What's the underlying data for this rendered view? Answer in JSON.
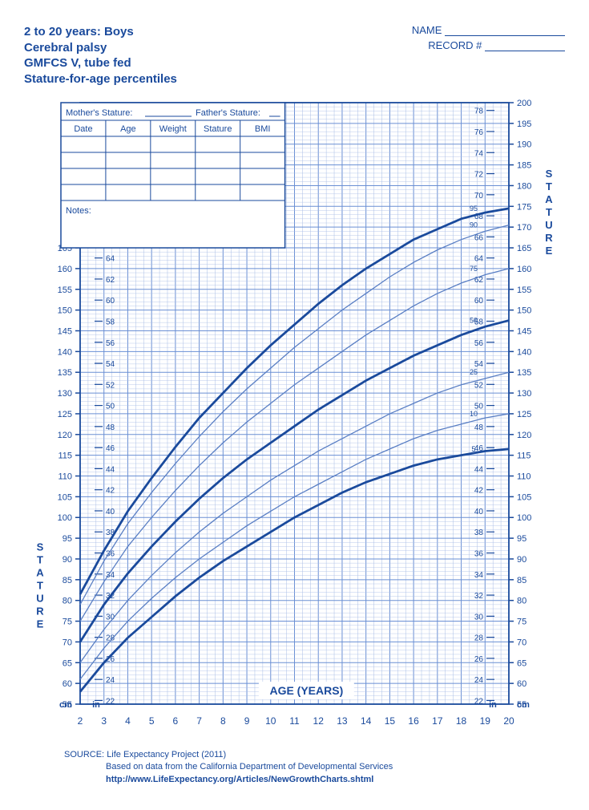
{
  "header": {
    "title1": "2 to 20 years: Boys",
    "title2": "Cerebral palsy",
    "title3": "GMFCS V, tube fed",
    "title4": "Stature-for-age percentiles",
    "name_label": "NAME",
    "record_label": "RECORD #"
  },
  "data_box": {
    "mothers": "Mother's Stature:",
    "fathers": "Father's Stature:",
    "cols": [
      "Date",
      "Age",
      "Weight",
      "Stature",
      "BMI"
    ],
    "notes_label": "Notes:"
  },
  "chart": {
    "x_label": "AGE (YEARS)",
    "y_label": "STATURE",
    "x": {
      "min": 2,
      "max": 20,
      "major": 1
    },
    "y_cm": {
      "min": 55,
      "max": 200,
      "major": 5
    },
    "y_in": {
      "min": 22,
      "max": 78,
      "major": 2
    },
    "left_cm_label_max": 165,
    "left_in_label_max": 66,
    "right_cm_label_min": 55,
    "cm_label": "cm",
    "in_label": "in",
    "grid_color": "#6a8fd4",
    "grid_minor_color": "#a8bde6",
    "curve_color_thick": "#1a4a9c",
    "curve_color_thin": "#5a7fc4",
    "percentiles": [
      {
        "label": "5",
        "thick": true,
        "points": [
          [
            2,
            58
          ],
          [
            3,
            65
          ],
          [
            4,
            71
          ],
          [
            5,
            76
          ],
          [
            6,
            81
          ],
          [
            7,
            85.5
          ],
          [
            8,
            89.5
          ],
          [
            9,
            93
          ],
          [
            10,
            96.5
          ],
          [
            11,
            100
          ],
          [
            12,
            103
          ],
          [
            13,
            106
          ],
          [
            14,
            108.5
          ],
          [
            15,
            110.5
          ],
          [
            16,
            112.5
          ],
          [
            17,
            114
          ],
          [
            18,
            115
          ],
          [
            19,
            116
          ],
          [
            20,
            116.5
          ]
        ]
      },
      {
        "label": "10",
        "thick": false,
        "points": [
          [
            2,
            61
          ],
          [
            3,
            68.5
          ],
          [
            4,
            75
          ],
          [
            5,
            80.5
          ],
          [
            6,
            85.5
          ],
          [
            7,
            90
          ],
          [
            8,
            94
          ],
          [
            9,
            98
          ],
          [
            10,
            101.5
          ],
          [
            11,
            105
          ],
          [
            12,
            108
          ],
          [
            13,
            111
          ],
          [
            14,
            114
          ],
          [
            15,
            116.5
          ],
          [
            16,
            119
          ],
          [
            17,
            121
          ],
          [
            18,
            122.5
          ],
          [
            19,
            124
          ],
          [
            20,
            125
          ]
        ]
      },
      {
        "label": "25",
        "thick": false,
        "points": [
          [
            2,
            65
          ],
          [
            3,
            73
          ],
          [
            4,
            80
          ],
          [
            5,
            86
          ],
          [
            6,
            91.5
          ],
          [
            7,
            96.5
          ],
          [
            8,
            101
          ],
          [
            9,
            105
          ],
          [
            10,
            109
          ],
          [
            11,
            112.5
          ],
          [
            12,
            116
          ],
          [
            13,
            119
          ],
          [
            14,
            122
          ],
          [
            15,
            125
          ],
          [
            16,
            127.5
          ],
          [
            17,
            130
          ],
          [
            18,
            132
          ],
          [
            19,
            133.5
          ],
          [
            20,
            135
          ]
        ]
      },
      {
        "label": "50",
        "thick": true,
        "points": [
          [
            2,
            70
          ],
          [
            3,
            79
          ],
          [
            4,
            86.5
          ],
          [
            5,
            93
          ],
          [
            6,
            99
          ],
          [
            7,
            104.5
          ],
          [
            8,
            109.5
          ],
          [
            9,
            114
          ],
          [
            10,
            118
          ],
          [
            11,
            122
          ],
          [
            12,
            126
          ],
          [
            13,
            129.5
          ],
          [
            14,
            133
          ],
          [
            15,
            136
          ],
          [
            16,
            139
          ],
          [
            17,
            141.5
          ],
          [
            18,
            144
          ],
          [
            19,
            146
          ],
          [
            20,
            147.5
          ]
        ]
      },
      {
        "label": "75",
        "thick": false,
        "points": [
          [
            2,
            75
          ],
          [
            3,
            84.5
          ],
          [
            4,
            93
          ],
          [
            5,
            100
          ],
          [
            6,
            106.5
          ],
          [
            7,
            112.5
          ],
          [
            8,
            118
          ],
          [
            9,
            123
          ],
          [
            10,
            127.5
          ],
          [
            11,
            132
          ],
          [
            12,
            136
          ],
          [
            13,
            140
          ],
          [
            14,
            144
          ],
          [
            15,
            147.5
          ],
          [
            16,
            151
          ],
          [
            17,
            154
          ],
          [
            18,
            156.5
          ],
          [
            19,
            158.5
          ],
          [
            20,
            160
          ]
        ]
      },
      {
        "label": "90",
        "thick": false,
        "points": [
          [
            2,
            79
          ],
          [
            3,
            89.5
          ],
          [
            4,
            98.5
          ],
          [
            5,
            106
          ],
          [
            6,
            113
          ],
          [
            7,
            119.5
          ],
          [
            8,
            125.5
          ],
          [
            9,
            131
          ],
          [
            10,
            136
          ],
          [
            11,
            141
          ],
          [
            12,
            145.5
          ],
          [
            13,
            150
          ],
          [
            14,
            154
          ],
          [
            15,
            158
          ],
          [
            16,
            161.5
          ],
          [
            17,
            164.5
          ],
          [
            18,
            167
          ],
          [
            19,
            169
          ],
          [
            20,
            170.5
          ]
        ]
      },
      {
        "label": "95",
        "thick": true,
        "points": [
          [
            2,
            81.5
          ],
          [
            3,
            92
          ],
          [
            4,
            101.5
          ],
          [
            5,
            109.5
          ],
          [
            6,
            117
          ],
          [
            7,
            124
          ],
          [
            8,
            130
          ],
          [
            9,
            136
          ],
          [
            10,
            141.5
          ],
          [
            11,
            146.5
          ],
          [
            12,
            151.5
          ],
          [
            13,
            156
          ],
          [
            14,
            160
          ],
          [
            15,
            163.5
          ],
          [
            16,
            167
          ],
          [
            17,
            169.5
          ],
          [
            18,
            172
          ],
          [
            19,
            173.5
          ],
          [
            20,
            174.5
          ]
        ]
      }
    ]
  },
  "footer": {
    "source_label": "SOURCE:",
    "source_text": "Life Expectancy Project (2011)",
    "based": "Based on data from the California Department of Developmental Services",
    "url": "http://www.LifeExpectancy.org/Articles/NewGrowthCharts.shtml"
  }
}
